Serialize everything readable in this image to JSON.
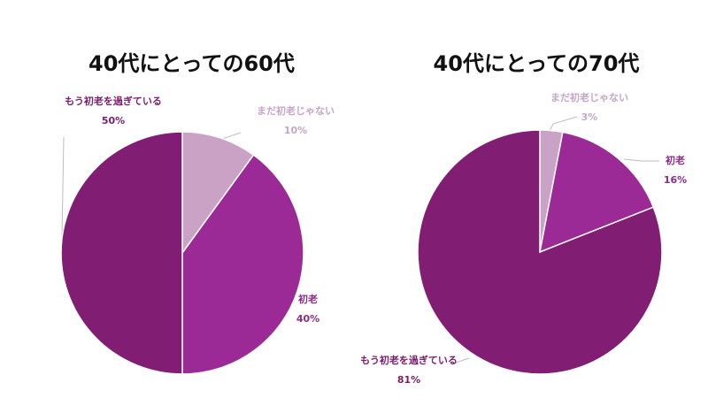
{
  "chart_data": [
    {
      "type": "pie",
      "title": "40代にとっての60代",
      "slices": [
        {
          "label": "まだ初老じゃない",
          "value": 10,
          "pct_label": "10%",
          "color": "#c9a2c6",
          "text_color": "#c6a6c8"
        },
        {
          "label": "初老",
          "value": 40,
          "pct_label": "40%",
          "color": "#9c2a96",
          "text_color": "#8d2b8a"
        },
        {
          "label": "もう初老を過ぎている",
          "value": 50,
          "pct_label": "50%",
          "color": "#821d74",
          "text_color": "#7a1d6e"
        }
      ]
    },
    {
      "type": "pie",
      "title": "40代にとっての70代",
      "slices": [
        {
          "label": "まだ初老じゃない",
          "value": 3,
          "pct_label": "3%",
          "color": "#c9a2c6",
          "text_color": "#c6a6c8"
        },
        {
          "label": "初老",
          "value": 16,
          "pct_label": "16%",
          "color": "#9c2a96",
          "text_color": "#8d2b8a"
        },
        {
          "label": "もう初老を過ぎている",
          "value": 81,
          "pct_label": "81%",
          "color": "#821d74",
          "text_color": "#7a1d6e"
        }
      ]
    }
  ]
}
